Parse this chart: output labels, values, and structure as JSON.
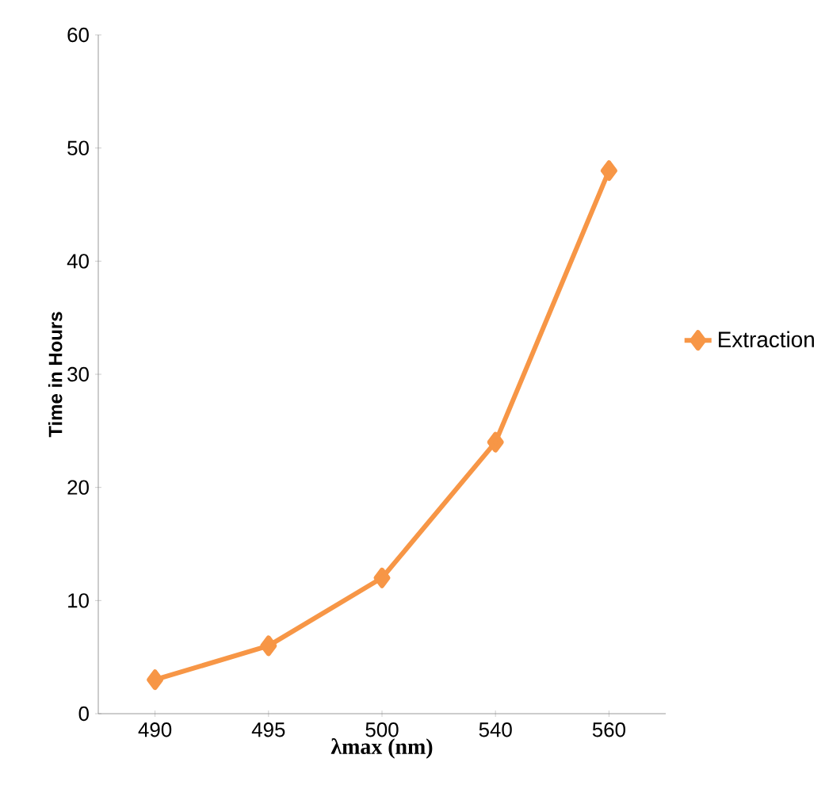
{
  "chart_data": {
    "type": "line",
    "xlabel": "λmax (nm)",
    "ylabel": "Time in Hours",
    "categories": [
      "490",
      "495",
      "500",
      "540",
      "560"
    ],
    "series": [
      {
        "name": "Extraction",
        "color": "#f79646",
        "values": [
          3,
          6,
          12,
          24,
          48
        ]
      }
    ],
    "ylim": [
      0,
      60
    ],
    "yticks": [
      0,
      10,
      20,
      30,
      40,
      50,
      60
    ],
    "marker": "diamond",
    "legend": "right",
    "grid": false
  }
}
